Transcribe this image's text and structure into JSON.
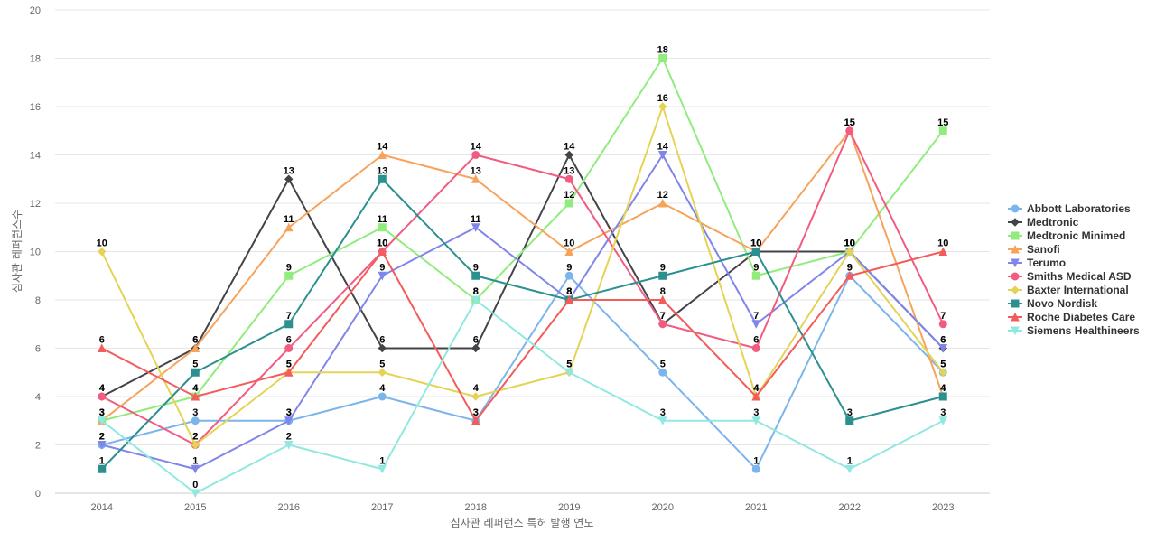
{
  "chart_data": {
    "type": "line",
    "title": "",
    "xlabel": "심사관 레퍼런스 특허 발행 연도",
    "ylabel": "심사관 레퍼런스수",
    "categories": [
      "2014",
      "2015",
      "2016",
      "2017",
      "2018",
      "2019",
      "2020",
      "2021",
      "2022",
      "2023"
    ],
    "ylim": [
      0,
      20
    ],
    "yticks": [
      0,
      2,
      4,
      6,
      8,
      10,
      12,
      14,
      16,
      18,
      20
    ],
    "grid": true,
    "legend_position": "right",
    "series": [
      {
        "name": "Abbott Laboratories",
        "color": "#7cb5ec",
        "marker": "circle",
        "values": [
          2,
          3,
          3,
          4,
          3,
          9,
          5,
          1,
          9,
          5
        ]
      },
      {
        "name": "Medtronic",
        "color": "#434348",
        "marker": "diamond",
        "values": [
          4,
          6,
          13,
          6,
          6,
          14,
          7,
          10,
          10,
          6
        ]
      },
      {
        "name": "Medtronic Minimed",
        "color": "#90ed7d",
        "marker": "square",
        "values": [
          3,
          4,
          9,
          11,
          8,
          12,
          18,
          9,
          10,
          15
        ]
      },
      {
        "name": "Sanofi",
        "color": "#f7a35c",
        "marker": "triangle",
        "values": [
          3,
          6,
          11,
          14,
          13,
          10,
          12,
          10,
          15,
          4
        ]
      },
      {
        "name": "Terumo",
        "color": "#8085e9",
        "marker": "triangle-down",
        "values": [
          2,
          1,
          3,
          9,
          11,
          8,
          14,
          7,
          10,
          6
        ]
      },
      {
        "name": "Smiths Medical ASD",
        "color": "#f15c80",
        "marker": "circle",
        "values": [
          4,
          2,
          6,
          10,
          14,
          13,
          7,
          6,
          15,
          7
        ]
      },
      {
        "name": "Baxter International",
        "color": "#e4d354",
        "marker": "diamond",
        "values": [
          10,
          2,
          5,
          5,
          4,
          5,
          16,
          4,
          10,
          5
        ]
      },
      {
        "name": "Novo Nordisk",
        "color": "#2b908f",
        "marker": "square",
        "values": [
          1,
          5,
          7,
          13,
          9,
          8,
          9,
          10,
          3,
          4
        ]
      },
      {
        "name": "Roche Diabetes Care",
        "color": "#f45b5b",
        "marker": "triangle",
        "values": [
          6,
          4,
          5,
          10,
          3,
          8,
          8,
          4,
          9,
          10
        ]
      },
      {
        "name": "Siemens Healthineers",
        "color": "#91e8e1",
        "marker": "triangle-down",
        "values": [
          3,
          0,
          2,
          1,
          8,
          5,
          3,
          3,
          1,
          3
        ]
      }
    ]
  }
}
